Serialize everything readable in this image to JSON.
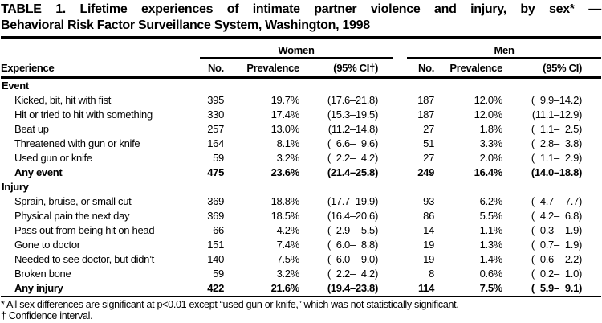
{
  "title": {
    "line1": "TABLE 1. Lifetime experiences of intimate partner violence and injury, by sex* —",
    "line2": "Behavioral Risk Factor Surveillance System, Washington, 1998"
  },
  "header": {
    "experience": "Experience",
    "groups": [
      "Women",
      "Men"
    ],
    "women_cols": [
      "No.",
      "Prevalence",
      "(95% CI†)"
    ],
    "men_cols": [
      "No.",
      "Prevalence",
      "(95% CI)"
    ]
  },
  "sections": [
    {
      "label": "Event",
      "rows": [
        {
          "label": "Kicked, bit, hit with fist",
          "w_no": "395",
          "w_prev": "19.7%",
          "w_ci": "(17.6–21.8)",
          "m_no": "187",
          "m_prev": "12.0%",
          "m_ci": "( 9.9–14.2)",
          "bold": false
        },
        {
          "label": "Hit or tried to hit with something",
          "w_no": "330",
          "w_prev": "17.4%",
          "w_ci": "(15.3–19.5)",
          "m_no": "187",
          "m_prev": "12.0%",
          "m_ci": "(11.1–12.9)",
          "bold": false
        },
        {
          "label": "Beat up",
          "w_no": "257",
          "w_prev": "13.0%",
          "w_ci": "(11.2–14.8)",
          "m_no": "27",
          "m_prev": "1.8%",
          "m_ci": "( 1.1– 2.5)",
          "bold": false
        },
        {
          "label": "Threatened with gun or knife",
          "w_no": "164",
          "w_prev": "8.1%",
          "w_ci": "( 6.6– 9.6)",
          "m_no": "51",
          "m_prev": "3.3%",
          "m_ci": "( 2.8– 3.8)",
          "bold": false
        },
        {
          "label": "Used gun or knife",
          "w_no": "59",
          "w_prev": "3.2%",
          "w_ci": "( 2.2– 4.2)",
          "m_no": "27",
          "m_prev": "2.0%",
          "m_ci": "( 1.1– 2.9)",
          "bold": false
        },
        {
          "label": "Any event",
          "w_no": "475",
          "w_prev": "23.6%",
          "w_ci": "(21.4–25.8)",
          "m_no": "249",
          "m_prev": "16.4%",
          "m_ci": "(14.0–18.8)",
          "bold": true
        }
      ]
    },
    {
      "label": "Injury",
      "rows": [
        {
          "label": "Sprain, bruise, or small cut",
          "w_no": "369",
          "w_prev": "18.8%",
          "w_ci": "(17.7–19.9)",
          "m_no": "93",
          "m_prev": "6.2%",
          "m_ci": "( 4.7– 7.7)",
          "bold": false
        },
        {
          "label": "Physical pain the next day",
          "w_no": "369",
          "w_prev": "18.5%",
          "w_ci": "(16.4–20.6)",
          "m_no": "86",
          "m_prev": "5.5%",
          "m_ci": "( 4.2– 6.8)",
          "bold": false
        },
        {
          "label": "Pass out from being hit on head",
          "w_no": "66",
          "w_prev": "4.2%",
          "w_ci": "( 2.9– 5.5)",
          "m_no": "14",
          "m_prev": "1.1%",
          "m_ci": "( 0.3– 1.9)",
          "bold": false
        },
        {
          "label": "Gone to doctor",
          "w_no": "151",
          "w_prev": "7.4%",
          "w_ci": "( 6.0– 8.8)",
          "m_no": "19",
          "m_prev": "1.3%",
          "m_ci": "( 0.7– 1.9)",
          "bold": false
        },
        {
          "label": "Needed to see doctor, but didn’t",
          "w_no": "140",
          "w_prev": "7.5%",
          "w_ci": "( 6.0– 9.0)",
          "m_no": "19",
          "m_prev": "1.4%",
          "m_ci": "( 0.6– 2.2)",
          "bold": false
        },
        {
          "label": "Broken bone",
          "w_no": "59",
          "w_prev": "3.2%",
          "w_ci": "( 2.2– 4.2)",
          "m_no": "8",
          "m_prev": "0.6%",
          "m_ci": "( 0.2– 1.0)",
          "bold": false
        },
        {
          "label": "Any injury",
          "w_no": "422",
          "w_prev": "21.6%",
          "w_ci": "(19.4–23.8)",
          "m_no": "114",
          "m_prev": "7.5%",
          "m_ci": "( 5.9– 9.1)",
          "bold": true
        }
      ]
    }
  ],
  "footnotes": [
    "* All sex differences are significant at p<0.01 except “used gun or knife,” which was not statistically significant.",
    "† Confidence interval."
  ]
}
